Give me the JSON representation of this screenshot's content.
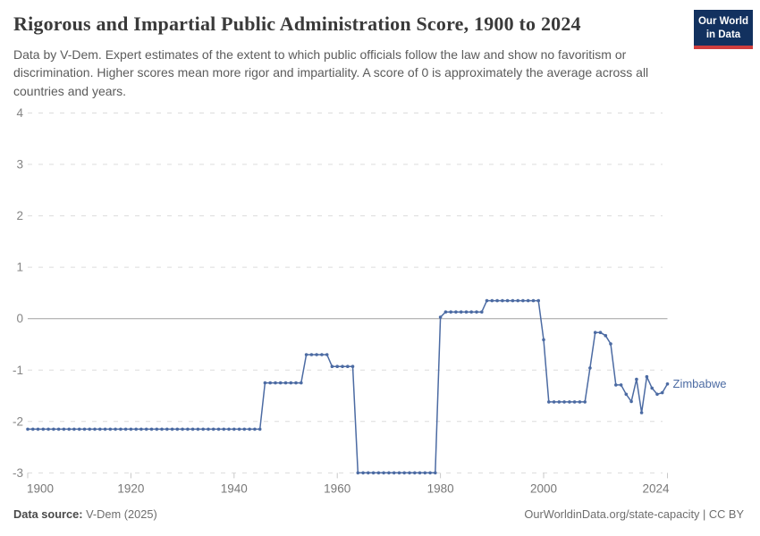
{
  "header": {
    "title": "Rigorous and Impartial Public Administration Score, 1900 to 2024",
    "subtitle": "Data by V-Dem. Expert estimates of the extent to which public officials follow the law and show no favoritism or discrimination. Higher scores mean more rigor and impartiality. A score of 0 is approximately the average across all countries and years.",
    "logo": {
      "line1": "Our World",
      "line2": "in Data"
    }
  },
  "footer": {
    "source_label": "Data source:",
    "source_value": " V-Dem (2025)",
    "credit": "OurWorldinData.org/state-capacity | CC BY"
  },
  "colors": {
    "series": "#4c6ba3",
    "grid": "#dcdcdc",
    "zero_line": "#a1a1a1",
    "axis_text": "#858585",
    "x_axis_text": "#787878",
    "tick_mark": "#c8c8c8",
    "logo_bg": "#12315f",
    "logo_underline": "#cf3e3e"
  },
  "chart_data": {
    "type": "line",
    "title": "Rigorous and Impartial Public Administration Score, 1900 to 2024",
    "xlabel": "",
    "ylabel": "",
    "xlim": [
      1900,
      2024
    ],
    "ylim": [
      -3,
      4
    ],
    "x_ticks": [
      1900,
      1920,
      1940,
      1960,
      1980,
      2000,
      2024
    ],
    "y_ticks": [
      4,
      3,
      2,
      1,
      0,
      -1,
      -2,
      -3
    ],
    "grid": "dashed horizontal, solid line at 0",
    "legend_position": "end-of-line label",
    "series": [
      {
        "name": "Zimbabwe",
        "value_runs_year_start_end_value": [
          [
            1900,
            1945,
            -2.15
          ],
          [
            1946,
            1953,
            -1.25
          ],
          [
            1954,
            1958,
            -0.7
          ],
          [
            1959,
            1963,
            -0.93
          ],
          [
            1964,
            1979,
            -3.0
          ],
          [
            1980,
            1980,
            0.03
          ],
          [
            1981,
            1988,
            0.13
          ],
          [
            1989,
            1999,
            0.35
          ],
          [
            2000,
            2000,
            -0.41
          ],
          [
            2001,
            2008,
            -1.62
          ],
          [
            2009,
            2009,
            -0.96
          ],
          [
            2010,
            2010,
            -0.27
          ],
          [
            2011,
            2011,
            -0.27
          ],
          [
            2012,
            2012,
            -0.33
          ],
          [
            2013,
            2013,
            -0.49
          ],
          [
            2014,
            2014,
            -1.29
          ],
          [
            2015,
            2015,
            -1.29
          ],
          [
            2016,
            2016,
            -1.47
          ],
          [
            2017,
            2017,
            -1.61
          ],
          [
            2018,
            2018,
            -1.18
          ],
          [
            2019,
            2019,
            -1.83
          ],
          [
            2020,
            2020,
            -1.13
          ],
          [
            2021,
            2021,
            -1.35
          ],
          [
            2022,
            2022,
            -1.47
          ],
          [
            2023,
            2023,
            -1.44
          ],
          [
            2024,
            2024,
            -1.27
          ]
        ]
      }
    ]
  }
}
